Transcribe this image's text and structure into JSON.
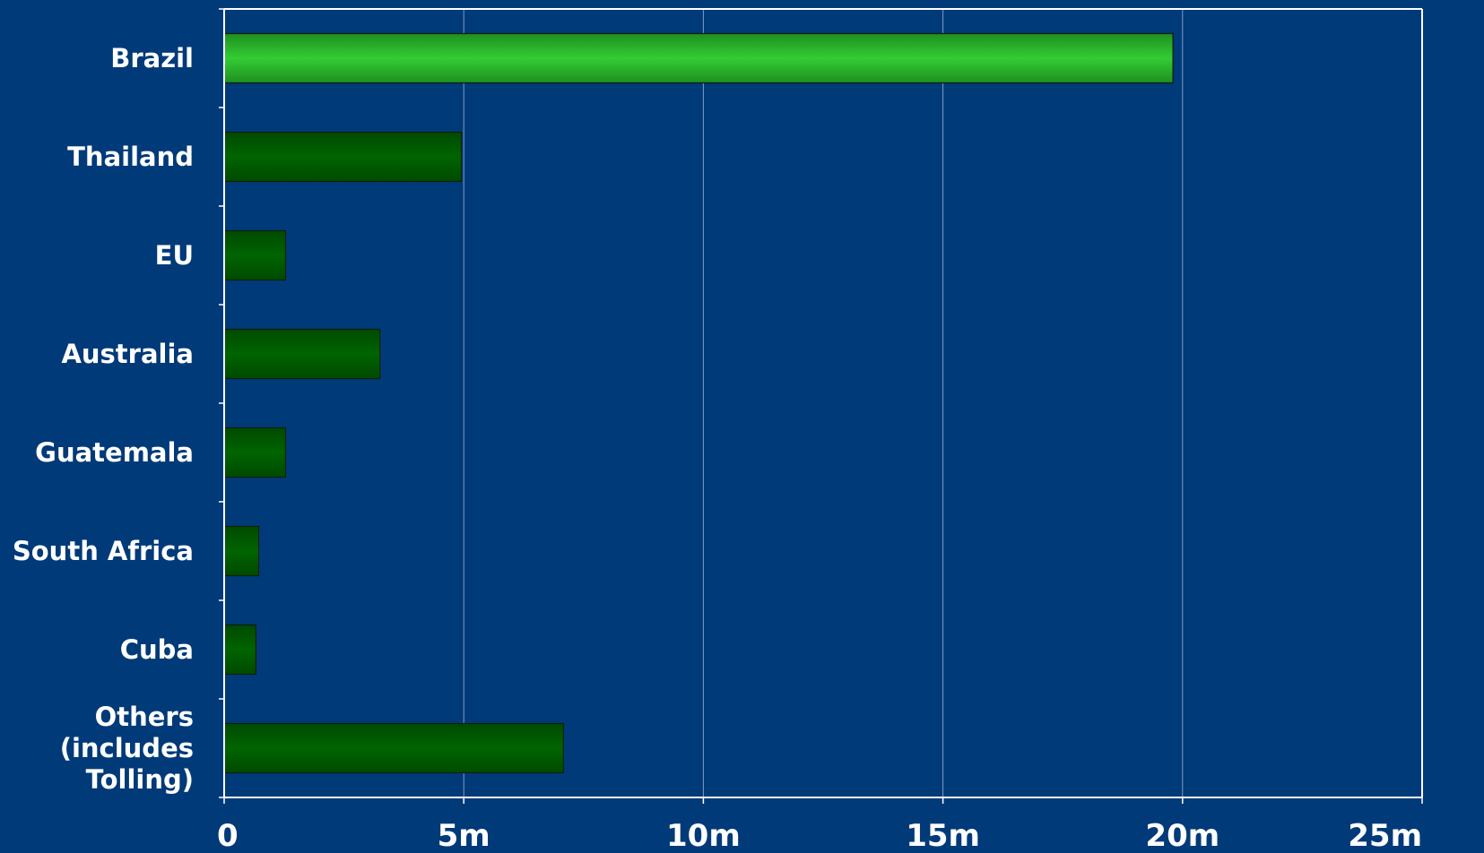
{
  "chart_data": {
    "type": "bar",
    "orientation": "horizontal",
    "categories": [
      [
        "Brazil"
      ],
      [
        "Thailand"
      ],
      [
        "EU"
      ],
      [
        "Australia"
      ],
      [
        "Guatemala"
      ],
      [
        "South Africa"
      ],
      [
        "Cuba"
      ],
      [
        "Others",
        "(includes",
        "Tolling)"
      ]
    ],
    "values": [
      19.8,
      4.95,
      1.28,
      3.25,
      1.28,
      0.72,
      0.66,
      7.08
    ],
    "x_unit": "m",
    "xlim": [
      0,
      25
    ],
    "x_ticks": [
      {
        "value": 0,
        "label": "0"
      },
      {
        "value": 5,
        "label": "5m"
      },
      {
        "value": 10,
        "label": "10m"
      },
      {
        "value": 15,
        "label": "15m"
      },
      {
        "value": 20,
        "label": "20m"
      },
      {
        "value": 25,
        "label": "25m"
      }
    ],
    "grid": "vertical",
    "legend": "none",
    "highlight_index": 0,
    "colors": {
      "background": "#003a78",
      "bar_highlight": "#33cc33",
      "bar_highlight_edge": "#1f8f1f",
      "bar_normal": "#006400",
      "bar_normal_edge": "#004a00",
      "gridline": "#7f9cc4",
      "axis": "#ffffff",
      "text": "#ffffff"
    },
    "title": "",
    "xlabel": "",
    "ylabel": ""
  }
}
